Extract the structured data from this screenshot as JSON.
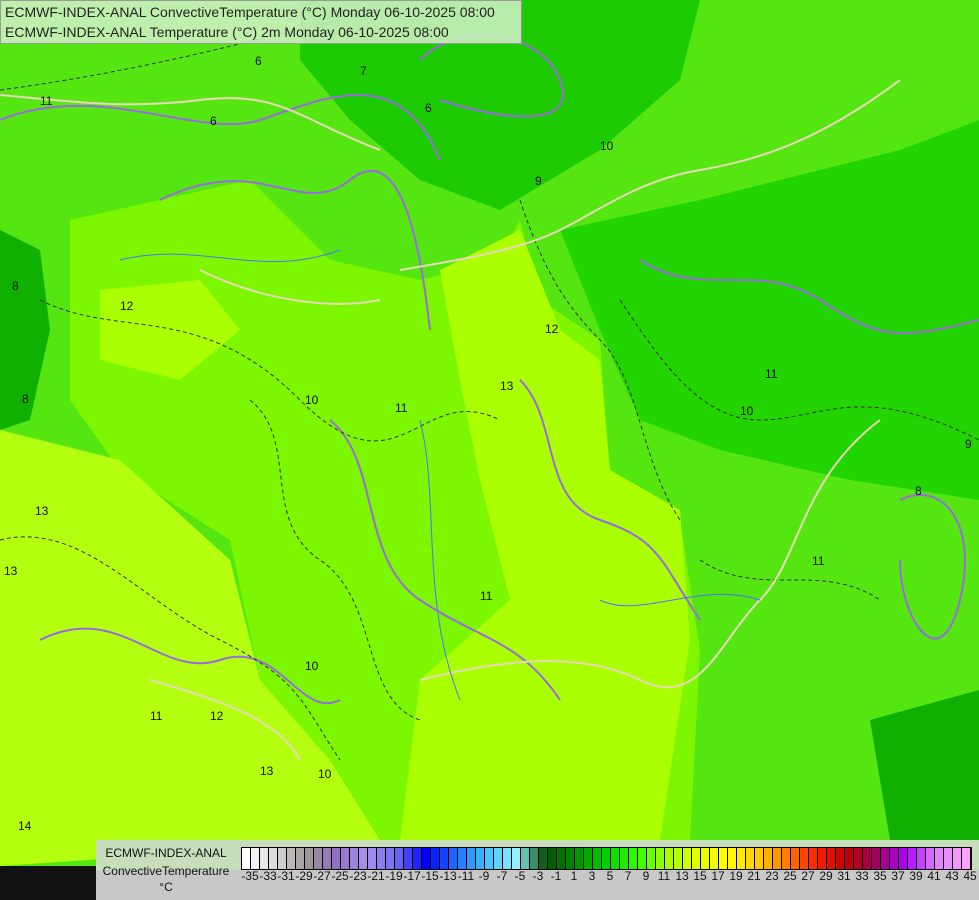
{
  "header": {
    "line1": "ECMWF-INDEX-ANAL ConvectiveTemperature (°C) Monday 06-10-2025 08:00",
    "line2": "ECMWF-INDEX-ANAL Temperature (°C) 2m Monday 06-10-2025 08:00"
  },
  "legend": {
    "model": "ECMWF-INDEX-ANAL",
    "variable": "ConvectiveTemperature",
    "unit": "°C",
    "tick_labels": [
      "-35",
      "-33",
      "-31",
      "-29",
      "-27",
      "-25",
      "-23",
      "-21",
      "-19",
      "-17",
      "-15",
      "-13",
      "-11",
      "-9",
      "-7",
      "-5",
      "-3",
      "-1",
      "1",
      "3",
      "5",
      "7",
      "9",
      "11",
      "13",
      "15",
      "17",
      "19",
      "21",
      "23",
      "25",
      "27",
      "29",
      "31",
      "33",
      "35",
      "37",
      "39",
      "41",
      "43",
      "45"
    ],
    "color_stops": [
      "#ffffff",
      "#d8d8d8",
      "#a09898",
      "#9070c0",
      "#a890f0",
      "#7070f0",
      "#0000ff",
      "#2070ff",
      "#40c0ff",
      "#90f0ff",
      "#005000",
      "#009000",
      "#00d000",
      "#30ff00",
      "#a0ff00",
      "#e0ff00",
      "#ffff00",
      "#ffd000",
      "#ff8000",
      "#ff2000",
      "#c00000",
      "#a00060",
      "#b000ff",
      "#e080ff",
      "#ffa0ff"
    ]
  },
  "map": {
    "contour_labels": [
      "6",
      "8",
      "7",
      "6",
      "10",
      "9",
      "11",
      "12",
      "13",
      "10",
      "11",
      "12",
      "10",
      "11",
      "13",
      "11",
      "10",
      "11",
      "12",
      "13",
      "14",
      "10",
      "13",
      "11",
      "9",
      "8",
      "8",
      "6"
    ],
    "colors": {
      "dark_green": "#00b400",
      "mid_green": "#22dd00",
      "light_green": "#66ee11",
      "yellow_green": "#aaff00",
      "pale_yellow": "#ccff22",
      "contour": "#9a6ae0",
      "border": "#e8d8b8"
    }
  }
}
